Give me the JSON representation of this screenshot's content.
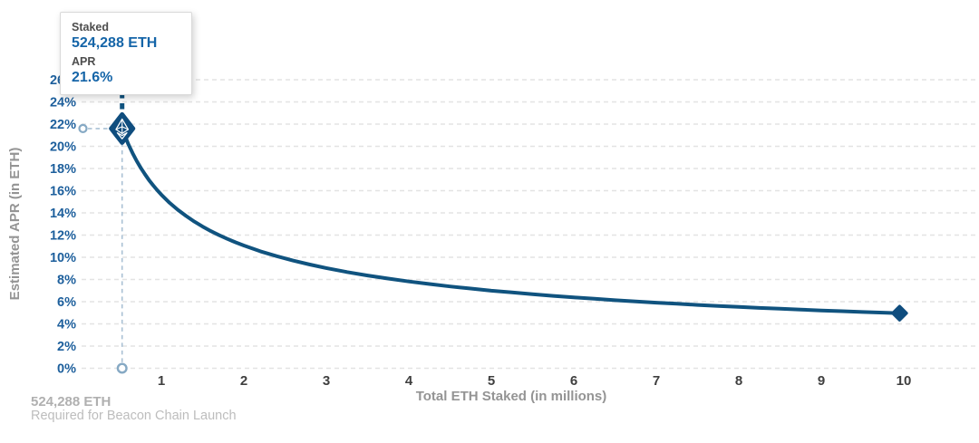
{
  "tooltip": {
    "staked_label": "Staked",
    "staked_value": "524,288 ETH",
    "apr_label": "APR",
    "apr_value": "21.6%"
  },
  "footnote": {
    "line1": "524,288 ETH",
    "line2": "Required for Beacon Chain Launch"
  },
  "colors": {
    "curve": "#10537f",
    "marker": "#0f4d7e",
    "y_tick_blue": "#1d5f9c",
    "x_tick_dark": "#3f3f3f",
    "axis_title_gray": "#949494",
    "grid": "#e3e3e3",
    "reference_dash": "#a9c0d4",
    "reference_circle": "#86a9c4",
    "tooltip_value_blue": "#1565a8"
  },
  "chart_data": {
    "type": "line",
    "title": "",
    "xlabel": "Total ETH Staked  (in millions)",
    "ylabel": "Estimated APR (in ETH)",
    "x_ticks": [
      1,
      2,
      3,
      4,
      5,
      6,
      7,
      8,
      9,
      10
    ],
    "y_ticks": [
      0,
      2,
      4,
      6,
      8,
      10,
      12,
      14,
      16,
      18,
      20,
      22,
      24,
      26
    ],
    "y_tick_suffix": "%",
    "xlim": [
      0,
      10.9
    ],
    "ylim": [
      0,
      26
    ],
    "grid": "horizontal-dashed",
    "legend": "none",
    "series": [
      {
        "name": "Estimated APR",
        "points": [
          [
            0.524288,
            21.6
          ],
          [
            0.55,
            21.09
          ],
          [
            0.6,
            20.19
          ],
          [
            0.65,
            19.4
          ],
          [
            0.7,
            18.69
          ],
          [
            0.75,
            18.06
          ],
          [
            0.8,
            17.49
          ],
          [
            0.85,
            16.96
          ],
          [
            0.9,
            16.49
          ],
          [
            0.95,
            16.05
          ],
          [
            1.0,
            15.64
          ],
          [
            1.1,
            14.91
          ],
          [
            1.2,
            14.28
          ],
          [
            1.3,
            13.72
          ],
          [
            1.4,
            13.22
          ],
          [
            1.5,
            12.77
          ],
          [
            1.6,
            12.36
          ],
          [
            1.7,
            11.99
          ],
          [
            1.8,
            11.66
          ],
          [
            1.9,
            11.35
          ],
          [
            2.0,
            11.06
          ],
          [
            2.2,
            10.54
          ],
          [
            2.4,
            10.1
          ],
          [
            2.6,
            9.7
          ],
          [
            2.8,
            9.35
          ],
          [
            3.0,
            9.03
          ],
          [
            3.25,
            8.67
          ],
          [
            3.5,
            8.36
          ],
          [
            3.75,
            8.08
          ],
          [
            4.0,
            7.82
          ],
          [
            4.25,
            7.59
          ],
          [
            4.5,
            7.37
          ],
          [
            4.75,
            7.18
          ],
          [
            5.0,
            6.99
          ],
          [
            5.25,
            6.83
          ],
          [
            5.5,
            6.67
          ],
          [
            5.75,
            6.52
          ],
          [
            6.0,
            6.38
          ],
          [
            6.25,
            6.26
          ],
          [
            6.5,
            6.13
          ],
          [
            6.75,
            6.02
          ],
          [
            7.0,
            5.91
          ],
          [
            7.25,
            5.81
          ],
          [
            7.5,
            5.71
          ],
          [
            7.75,
            5.62
          ],
          [
            8.0,
            5.53
          ],
          [
            8.25,
            5.44
          ],
          [
            8.5,
            5.36
          ],
          [
            8.75,
            5.29
          ],
          [
            9.0,
            5.21
          ],
          [
            9.25,
            5.14
          ],
          [
            9.5,
            5.07
          ],
          [
            9.75,
            5.01
          ],
          [
            9.95,
            4.96
          ]
        ]
      }
    ],
    "highlight_point": {
      "x": 0.524288,
      "apr": 21.6
    },
    "end_point": {
      "x": 9.95,
      "apr": 4.96
    }
  }
}
